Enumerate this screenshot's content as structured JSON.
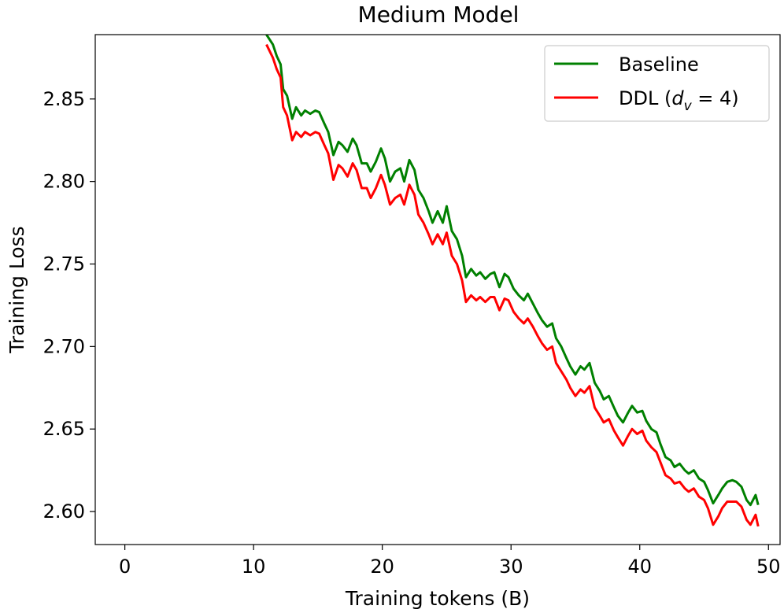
{
  "chart_data": {
    "type": "line",
    "title": "Medium Model",
    "xlabel": "Training tokens (B)",
    "ylabel": "Training Loss",
    "xlim": [
      -2.3,
      50.9
    ],
    "ylim": [
      2.58,
      2.889
    ],
    "xticks": [
      0,
      10,
      20,
      30,
      40,
      50
    ],
    "xtick_labels": [
      "0",
      "10",
      "20",
      "30",
      "40",
      "50"
    ],
    "yticks": [
      2.6,
      2.65,
      2.7,
      2.75,
      2.8,
      2.85
    ],
    "ytick_labels": [
      "2.60",
      "2.65",
      "2.70",
      "2.75",
      "2.80",
      "2.85"
    ],
    "grid": false,
    "legend_position": "top-right",
    "series": [
      {
        "name": "Baseline",
        "color": "#008000",
        "x": [
          11.0,
          11.5,
          11.8,
          12.1,
          12.3,
          12.6,
          13.0,
          13.3,
          13.7,
          14.0,
          14.4,
          14.8,
          15.1,
          15.5,
          15.8,
          16.2,
          16.6,
          16.9,
          17.3,
          17.7,
          18.0,
          18.4,
          18.8,
          19.1,
          19.5,
          19.9,
          20.2,
          20.6,
          21.0,
          21.4,
          21.7,
          22.1,
          22.5,
          22.8,
          23.2,
          23.6,
          23.9,
          24.3,
          24.7,
          25.0,
          25.4,
          25.8,
          26.2,
          26.5,
          26.9,
          27.3,
          27.6,
          28.0,
          28.4,
          28.7,
          29.1,
          29.5,
          29.8,
          30.2,
          30.6,
          31.0,
          31.3,
          31.7,
          32.1,
          32.4,
          32.8,
          33.2,
          33.5,
          33.9,
          34.3,
          34.6,
          35.0,
          35.4,
          35.7,
          36.1,
          36.5,
          36.9,
          37.2,
          37.6,
          38.0,
          38.3,
          38.7,
          39.1,
          39.4,
          39.8,
          40.2,
          40.5,
          40.9,
          41.3,
          41.6,
          42.0,
          42.4,
          42.7,
          43.1,
          43.5,
          43.8,
          44.2,
          44.6,
          45.0,
          45.3,
          45.7,
          46.1,
          46.4,
          46.8,
          47.2,
          47.5,
          47.9,
          48.3,
          48.6,
          49.0,
          49.2
        ],
        "values": [
          2.889,
          2.883,
          2.876,
          2.871,
          2.856,
          2.852,
          2.838,
          2.845,
          2.84,
          2.843,
          2.841,
          2.843,
          2.842,
          2.835,
          2.83,
          2.816,
          2.824,
          2.822,
          2.818,
          2.826,
          2.822,
          2.811,
          2.811,
          2.806,
          2.812,
          2.82,
          2.814,
          2.8,
          2.806,
          2.808,
          2.8,
          2.813,
          2.807,
          2.795,
          2.79,
          2.782,
          2.775,
          2.782,
          2.775,
          2.785,
          2.77,
          2.765,
          2.755,
          2.742,
          2.747,
          2.743,
          2.745,
          2.741,
          2.744,
          2.745,
          2.736,
          2.744,
          2.742,
          2.735,
          2.731,
          2.728,
          2.732,
          2.726,
          2.72,
          2.716,
          2.712,
          2.714,
          2.705,
          2.7,
          2.693,
          2.688,
          2.683,
          2.688,
          2.686,
          2.69,
          2.678,
          2.673,
          2.668,
          2.67,
          2.663,
          2.658,
          2.654,
          2.66,
          2.664,
          2.66,
          2.661,
          2.655,
          2.65,
          2.648,
          2.641,
          2.633,
          2.631,
          2.627,
          2.629,
          2.625,
          2.623,
          2.625,
          2.62,
          2.618,
          2.613,
          2.605,
          2.61,
          2.614,
          2.618,
          2.619,
          2.618,
          2.615,
          2.607,
          2.604,
          2.61,
          2.604
        ]
      },
      {
        "name": "DDL (d_v = 4)",
        "color": "#ff0000",
        "x": [
          11.0,
          11.5,
          11.8,
          12.1,
          12.3,
          12.6,
          13.0,
          13.3,
          13.7,
          14.0,
          14.4,
          14.8,
          15.1,
          15.5,
          15.8,
          16.2,
          16.6,
          16.9,
          17.3,
          17.7,
          18.0,
          18.4,
          18.8,
          19.1,
          19.5,
          19.9,
          20.2,
          20.6,
          21.0,
          21.4,
          21.7,
          22.1,
          22.5,
          22.8,
          23.2,
          23.6,
          23.9,
          24.3,
          24.7,
          25.0,
          25.4,
          25.8,
          26.2,
          26.5,
          26.9,
          27.3,
          27.6,
          28.0,
          28.4,
          28.7,
          29.1,
          29.5,
          29.8,
          30.2,
          30.6,
          31.0,
          31.3,
          31.7,
          32.1,
          32.4,
          32.8,
          33.2,
          33.5,
          33.9,
          34.3,
          34.6,
          35.0,
          35.4,
          35.7,
          36.1,
          36.5,
          36.9,
          37.2,
          37.6,
          38.0,
          38.3,
          38.7,
          39.1,
          39.4,
          39.8,
          40.2,
          40.5,
          40.9,
          41.3,
          41.6,
          42.0,
          42.4,
          42.7,
          43.1,
          43.5,
          43.8,
          44.2,
          44.6,
          45.0,
          45.3,
          45.7,
          46.1,
          46.4,
          46.8,
          47.2,
          47.5,
          47.9,
          48.3,
          48.6,
          49.0,
          49.2
        ],
        "values": [
          2.883,
          2.875,
          2.868,
          2.863,
          2.845,
          2.84,
          2.825,
          2.83,
          2.827,
          2.83,
          2.828,
          2.83,
          2.829,
          2.822,
          2.817,
          2.801,
          2.81,
          2.808,
          2.803,
          2.811,
          2.807,
          2.796,
          2.796,
          2.79,
          2.796,
          2.804,
          2.798,
          2.786,
          2.79,
          2.792,
          2.786,
          2.798,
          2.792,
          2.78,
          2.775,
          2.768,
          2.762,
          2.768,
          2.762,
          2.769,
          2.755,
          2.75,
          2.74,
          2.727,
          2.731,
          2.728,
          2.73,
          2.727,
          2.73,
          2.73,
          2.722,
          2.729,
          2.728,
          2.721,
          2.717,
          2.714,
          2.717,
          2.712,
          2.706,
          2.702,
          2.698,
          2.7,
          2.69,
          2.685,
          2.68,
          2.675,
          2.67,
          2.674,
          2.672,
          2.676,
          2.663,
          2.658,
          2.654,
          2.656,
          2.649,
          2.645,
          2.64,
          2.646,
          2.65,
          2.647,
          2.649,
          2.643,
          2.639,
          2.636,
          2.63,
          2.622,
          2.62,
          2.617,
          2.618,
          2.614,
          2.612,
          2.614,
          2.609,
          2.607,
          2.602,
          2.592,
          2.597,
          2.602,
          2.606,
          2.606,
          2.606,
          2.603,
          2.595,
          2.592,
          2.598,
          2.591
        ]
      }
    ],
    "legend": [
      {
        "label": "Baseline",
        "color": "#008000"
      },
      {
        "label_prefix": "DDL (",
        "label_var": "d",
        "label_sub": "v",
        "label_suffix": " = 4)",
        "color": "#ff0000"
      }
    ]
  }
}
